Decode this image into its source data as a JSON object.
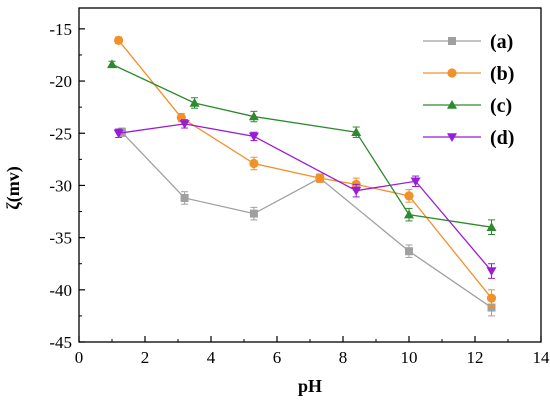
{
  "chart_data": {
    "type": "line",
    "xlabel": "pH",
    "ylabel": "ζ(mv)",
    "xlim": [
      0,
      14
    ],
    "ylim": [
      -45,
      -13
    ],
    "xticks": [
      0,
      2,
      4,
      6,
      8,
      10,
      12,
      14
    ],
    "yticks": [
      -45,
      -40,
      -35,
      -30,
      -25,
      -20,
      -15
    ],
    "xtick_labels": [
      "0",
      "2",
      "4",
      "6",
      "8",
      "10",
      "12",
      "14"
    ],
    "ytick_labels": [
      "-45",
      "-40",
      "-35",
      "-30",
      "-25",
      "-20",
      "-15"
    ],
    "grid": false,
    "legend_position": "top-right",
    "series": [
      {
        "name": "(a)",
        "color": "#a0a0a0",
        "marker": "square",
        "x": [
          1.3,
          3.2,
          5.3,
          7.3,
          10.0,
          12.5
        ],
        "y": [
          -24.9,
          -31.2,
          -32.7,
          -29.3,
          -36.3,
          -41.7
        ],
        "err": [
          0.4,
          0.6,
          0.6,
          0.4,
          0.6,
          0.8
        ]
      },
      {
        "name": "(b)",
        "color": "#f0912a",
        "marker": "circle",
        "x": [
          1.2,
          3.1,
          5.3,
          7.3,
          8.4,
          10.0,
          12.5
        ],
        "y": [
          -16.1,
          -23.5,
          -27.9,
          -29.3,
          -29.9,
          -31.0,
          -40.8
        ],
        "err": [
          0.3,
          0.4,
          0.6,
          0.4,
          0.6,
          0.6,
          0.8
        ]
      },
      {
        "name": "(c)",
        "color": "#2e8a2e",
        "marker": "triangle-up",
        "x": [
          1.0,
          3.5,
          5.3,
          8.4,
          10.0,
          12.5
        ],
        "y": [
          -18.4,
          -22.1,
          -23.4,
          -24.9,
          -32.8,
          -34.0
        ],
        "err": [
          0.3,
          0.5,
          0.5,
          0.5,
          0.6,
          0.7
        ]
      },
      {
        "name": "(d)",
        "color": "#9a1bd8",
        "marker": "triangle-down",
        "x": [
          1.2,
          3.2,
          5.3,
          8.4,
          10.2,
          12.5
        ],
        "y": [
          -25.0,
          -24.1,
          -25.3,
          -30.5,
          -29.6,
          -38.2
        ],
        "err": [
          0.4,
          0.4,
          0.4,
          0.6,
          0.5,
          0.7
        ]
      }
    ]
  }
}
